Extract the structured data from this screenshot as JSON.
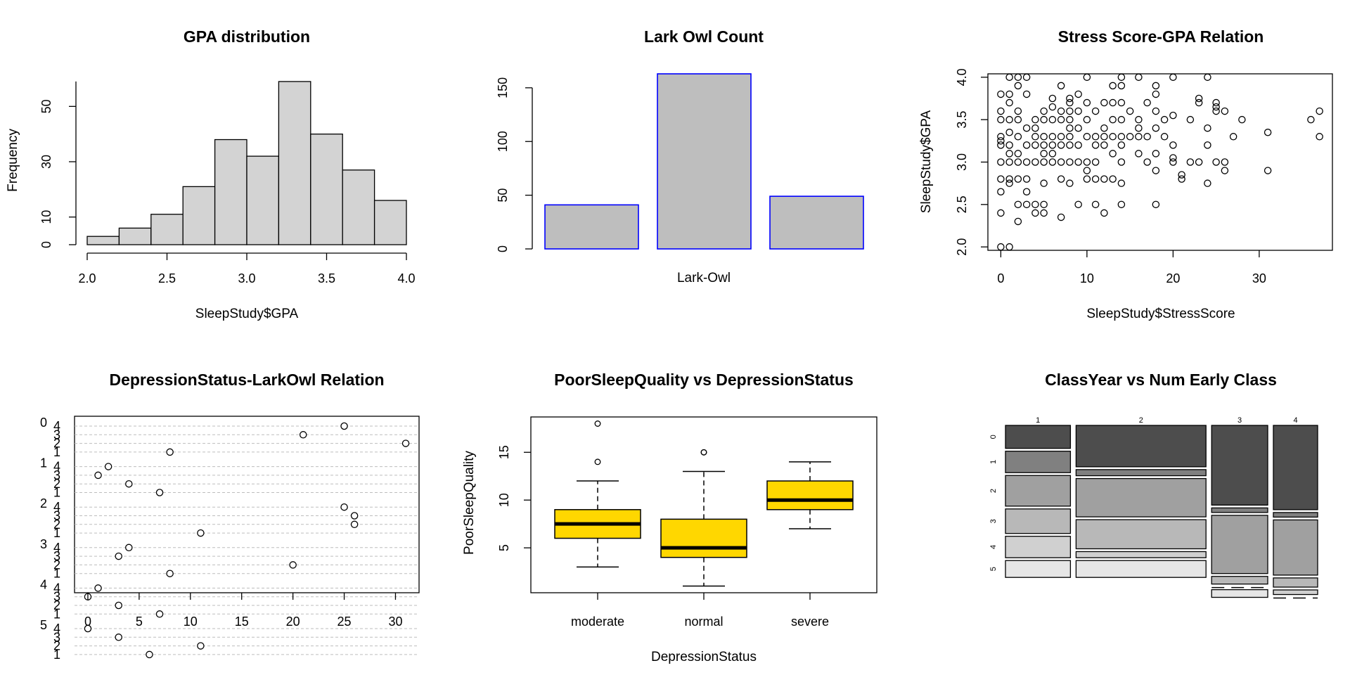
{
  "chart_data": [
    {
      "type": "histogram",
      "title": "GPA distribution",
      "xlabel": "SleepStudy$GPA",
      "ylabel": "Frequency",
      "bins": [
        [
          2.0,
          2.2
        ],
        [
          2.2,
          2.4
        ],
        [
          2.4,
          2.6
        ],
        [
          2.6,
          2.8
        ],
        [
          2.8,
          3.0
        ],
        [
          3.0,
          3.2
        ],
        [
          3.2,
          3.4
        ],
        [
          3.4,
          3.6
        ],
        [
          3.6,
          3.8
        ],
        [
          3.8,
          4.0
        ]
      ],
      "values": [
        3,
        6,
        11,
        21,
        38,
        32,
        59,
        40,
        27,
        16
      ],
      "x_ticks": [
        "2.0",
        "2.5",
        "3.0",
        "3.5",
        "4.0"
      ],
      "y_ticks": [
        "0",
        "10",
        "30",
        "50"
      ],
      "xlim": [
        2.0,
        4.0
      ],
      "ylim": [
        0,
        60
      ],
      "fill": "#d3d3d3"
    },
    {
      "type": "bar",
      "title": "Lark Owl Count",
      "xlabel": "Lark-Owl",
      "values": [
        41,
        163,
        49
      ],
      "y_ticks": [
        "0",
        "50",
        "100",
        "150"
      ],
      "ylim": [
        0,
        163
      ],
      "fill": "#bebebe",
      "border": "#0000ff"
    },
    {
      "type": "scatter",
      "title": "Stress Score-GPA Relation",
      "xlabel": "SleepStudy$StressScore",
      "ylabel": "SleepStudy$GPA",
      "x_ticks": [
        "0",
        "10",
        "20",
        "30"
      ],
      "y_ticks": [
        "2.0",
        "2.5",
        "3.0",
        "3.5",
        "4.0"
      ],
      "xlim": [
        -1.5,
        38.5
      ],
      "ylim": [
        1.96,
        4.04
      ],
      "points": [
        [
          0,
          2.0
        ],
        [
          1,
          2.0
        ],
        [
          0,
          2.4
        ],
        [
          0,
          2.65
        ],
        [
          0,
          2.8
        ],
        [
          0,
          3.0
        ],
        [
          0,
          3.2
        ],
        [
          0,
          3.25
        ],
        [
          0,
          3.3
        ],
        [
          0,
          3.5
        ],
        [
          0,
          3.6
        ],
        [
          0,
          3.8
        ],
        [
          1,
          2.75
        ],
        [
          1,
          2.8
        ],
        [
          1,
          3.0
        ],
        [
          1,
          3.1
        ],
        [
          1,
          3.2
        ],
        [
          1,
          3.35
        ],
        [
          1,
          3.5
        ],
        [
          1,
          3.7
        ],
        [
          1,
          3.8
        ],
        [
          1,
          4.0
        ],
        [
          2,
          2.3
        ],
        [
          2,
          2.5
        ],
        [
          2,
          2.8
        ],
        [
          2,
          3.0
        ],
        [
          2,
          3.1
        ],
        [
          2,
          3.3
        ],
        [
          2,
          3.5
        ],
        [
          2,
          3.6
        ],
        [
          2,
          3.9
        ],
        [
          2,
          4.0
        ],
        [
          3,
          2.5
        ],
        [
          3,
          2.65
        ],
        [
          3,
          2.8
        ],
        [
          3,
          3.0
        ],
        [
          3,
          3.2
        ],
        [
          3,
          3.4
        ],
        [
          3,
          3.8
        ],
        [
          3,
          4.0
        ],
        [
          4,
          2.4
        ],
        [
          4,
          2.5
        ],
        [
          4,
          3.0
        ],
        [
          4,
          3.2
        ],
        [
          4,
          3.3
        ],
        [
          4,
          3.4
        ],
        [
          4,
          3.5
        ],
        [
          5,
          2.4
        ],
        [
          5,
          2.5
        ],
        [
          5,
          2.75
        ],
        [
          5,
          3.0
        ],
        [
          5,
          3.1
        ],
        [
          5,
          3.2
        ],
        [
          5,
          3.3
        ],
        [
          5,
          3.5
        ],
        [
          5,
          3.6
        ],
        [
          6,
          3.0
        ],
        [
          6,
          3.1
        ],
        [
          6,
          3.2
        ],
        [
          6,
          3.3
        ],
        [
          6,
          3.5
        ],
        [
          6,
          3.65
        ],
        [
          6,
          3.75
        ],
        [
          7,
          2.35
        ],
        [
          7,
          2.8
        ],
        [
          7,
          3.0
        ],
        [
          7,
          3.2
        ],
        [
          7,
          3.3
        ],
        [
          7,
          3.5
        ],
        [
          7,
          3.6
        ],
        [
          7,
          3.9
        ],
        [
          8,
          2.75
        ],
        [
          8,
          3.0
        ],
        [
          8,
          3.2
        ],
        [
          8,
          3.3
        ],
        [
          8,
          3.4
        ],
        [
          8,
          3.5
        ],
        [
          8,
          3.6
        ],
        [
          8,
          3.7
        ],
        [
          8,
          3.75
        ],
        [
          9,
          2.5
        ],
        [
          9,
          3.0
        ],
        [
          9,
          3.2
        ],
        [
          9,
          3.4
        ],
        [
          9,
          3.6
        ],
        [
          9,
          3.8
        ],
        [
          10,
          2.8
        ],
        [
          10,
          2.9
        ],
        [
          10,
          3.0
        ],
        [
          10,
          3.3
        ],
        [
          10,
          3.5
        ],
        [
          10,
          3.7
        ],
        [
          10,
          4.0
        ],
        [
          11,
          2.5
        ],
        [
          11,
          2.8
        ],
        [
          11,
          3.0
        ],
        [
          11,
          3.2
        ],
        [
          11,
          3.3
        ],
        [
          11,
          3.6
        ],
        [
          12,
          2.4
        ],
        [
          12,
          2.8
        ],
        [
          12,
          3.2
        ],
        [
          12,
          3.3
        ],
        [
          12,
          3.4
        ],
        [
          12,
          3.7
        ],
        [
          13,
          2.8
        ],
        [
          13,
          3.1
        ],
        [
          13,
          3.3
        ],
        [
          13,
          3.5
        ],
        [
          13,
          3.7
        ],
        [
          13,
          3.9
        ],
        [
          14,
          2.5
        ],
        [
          14,
          2.75
        ],
        [
          14,
          3.0
        ],
        [
          14,
          3.2
        ],
        [
          14,
          3.3
        ],
        [
          14,
          3.5
        ],
        [
          14,
          3.7
        ],
        [
          14,
          3.9
        ],
        [
          14,
          4.0
        ],
        [
          15,
          3.3
        ],
        [
          15,
          3.6
        ],
        [
          16,
          3.1
        ],
        [
          16,
          3.3
        ],
        [
          16,
          3.4
        ],
        [
          16,
          3.5
        ],
        [
          16,
          4.0
        ],
        [
          17,
          3.0
        ],
        [
          17,
          3.3
        ],
        [
          17,
          3.7
        ],
        [
          18,
          2.5
        ],
        [
          18,
          2.9
        ],
        [
          18,
          3.1
        ],
        [
          18,
          3.4
        ],
        [
          18,
          3.6
        ],
        [
          18,
          3.8
        ],
        [
          18,
          3.9
        ],
        [
          19,
          3.3
        ],
        [
          19,
          3.5
        ],
        [
          20,
          3.0
        ],
        [
          20,
          3.05
        ],
        [
          20,
          3.2
        ],
        [
          20,
          3.55
        ],
        [
          20,
          4.0
        ],
        [
          21,
          2.8
        ],
        [
          21,
          2.85
        ],
        [
          22,
          3.0
        ],
        [
          22,
          3.5
        ],
        [
          23,
          3.0
        ],
        [
          23,
          3.7
        ],
        [
          23,
          3.75
        ],
        [
          24,
          2.75
        ],
        [
          24,
          3.2
        ],
        [
          24,
          3.4
        ],
        [
          24,
          4.0
        ],
        [
          25,
          3.0
        ],
        [
          25,
          3.6
        ],
        [
          25,
          3.65
        ],
        [
          25,
          3.7
        ],
        [
          26,
          2.9
        ],
        [
          26,
          3.0
        ],
        [
          26,
          3.6
        ],
        [
          27,
          3.3
        ],
        [
          28,
          3.5
        ],
        [
          31,
          2.9
        ],
        [
          31,
          3.35
        ],
        [
          36,
          3.5
        ],
        [
          37,
          3.3
        ],
        [
          37,
          3.6
        ]
      ]
    },
    {
      "type": "scatter",
      "title": "DepressionStatus-LarkOwl Relation",
      "group_labels": [
        "0",
        "1",
        "2",
        "3",
        "4",
        "5"
      ],
      "sub_labels": [
        "4",
        "3",
        "2",
        "1"
      ],
      "x_ticks": [
        "0",
        "5",
        "10",
        "15",
        "20",
        "25",
        "30"
      ],
      "xlim": [
        -1.3,
        32.3
      ],
      "points": [
        [
          21,
          0,
          2
        ],
        [
          25,
          0,
          1
        ],
        [
          31,
          0,
          3
        ],
        [
          8,
          0,
          4
        ],
        [
          1,
          1,
          2
        ],
        [
          2,
          1,
          1
        ],
        [
          4,
          1,
          3
        ],
        [
          7,
          1,
          4
        ],
        [
          25,
          2,
          1
        ],
        [
          26,
          2,
          2
        ],
        [
          26,
          2,
          3
        ],
        [
          11,
          2,
          4
        ],
        [
          3,
          3,
          2
        ],
        [
          4,
          3,
          1
        ],
        [
          20,
          3,
          3
        ],
        [
          8,
          3,
          4
        ],
        [
          1,
          4,
          1
        ],
        [
          0,
          4,
          2
        ],
        [
          3,
          4,
          3
        ],
        [
          7,
          4,
          4
        ],
        [
          0,
          5,
          1
        ],
        [
          3,
          5,
          2
        ],
        [
          11,
          5,
          3
        ],
        [
          6,
          5,
          4
        ]
      ]
    },
    {
      "type": "box",
      "title": "PoorSleepQuality vs DepressionStatus",
      "xlabel": "DepressionStatus",
      "ylabel": "PoorSleepQuality",
      "categories": [
        "moderate",
        "normal",
        "severe"
      ],
      "boxes": [
        {
          "whisker_low": 3,
          "q1": 6,
          "median": 7.5,
          "q3": 9,
          "whisker_high": 12,
          "outliers": [
            14,
            18
          ]
        },
        {
          "whisker_low": 1,
          "q1": 4,
          "median": 5,
          "q3": 8,
          "whisker_high": 13,
          "outliers": [
            15,
            15
          ]
        },
        {
          "whisker_low": 7,
          "q1": 9,
          "median": 10,
          "q3": 12,
          "whisker_high": 14,
          "outliers": []
        }
      ],
      "y_ticks": [
        "5",
        "10",
        "15"
      ],
      "ylim": [
        0.3,
        18.7
      ],
      "fill": "#ffd700"
    },
    {
      "type": "mosaic",
      "title": "ClassYear vs Num Early Class",
      "col_labels": [
        "1",
        "2",
        "3",
        "4"
      ],
      "row_labels": [
        "0",
        "1",
        "2",
        "3",
        "4",
        "5"
      ],
      "col_widths": [
        0.22,
        0.44,
        0.19,
        0.15
      ],
      "proportions": [
        [
          0.15,
          0.14,
          0.2,
          0.16,
          0.14,
          0.11
        ],
        [
          0.27,
          0.04,
          0.25,
          0.19,
          0.04,
          0.11
        ],
        [
          0.52,
          0.03,
          0.38,
          0.05,
          0.0,
          0.05
        ],
        [
          0.55,
          0.03,
          0.36,
          0.06,
          0.03,
          0.0
        ]
      ],
      "shades": [
        "#4d4d4d",
        "#808080",
        "#a0a0a0",
        "#b8b8b8",
        "#d0d0d0",
        "#e6e6e6"
      ]
    }
  ]
}
